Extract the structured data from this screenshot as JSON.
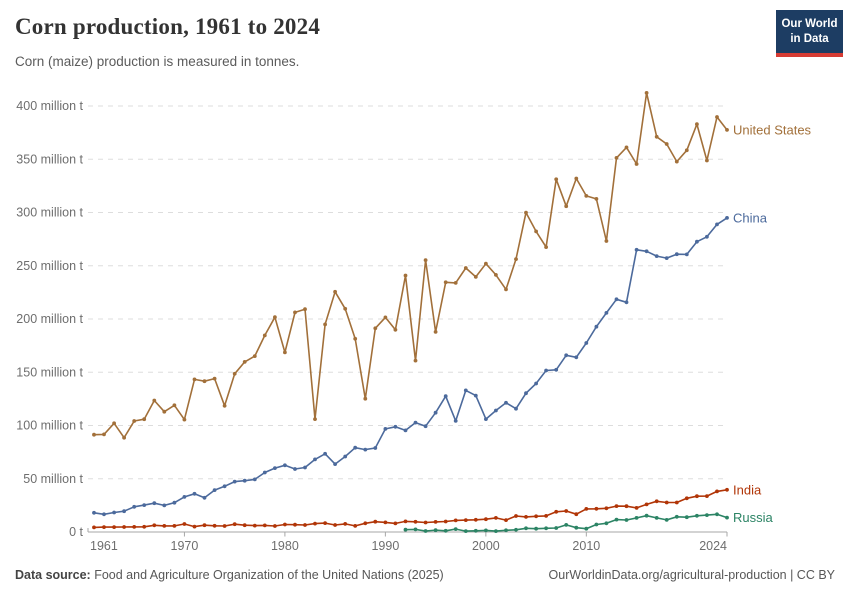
{
  "header": {
    "title": "Corn production, 1961 to 2024",
    "subtitle": "Corn (maize) production is measured in tonnes.",
    "logo": {
      "line1": "Our World",
      "line2": "in Data",
      "bg_color": "#1d3d63",
      "accent_color": "#d73c34"
    }
  },
  "chart_data": {
    "type": "line",
    "title": "Corn production, 1961 to 2024",
    "subtitle": "Corn (maize) production is measured in tonnes.",
    "unit": "tonnes",
    "grid": "dashed-horizontal",
    "legend_position": "right-end-of-line",
    "ylim": [
      0,
      415
    ],
    "xlim": [
      1961,
      2024
    ],
    "yticks": [
      {
        "value": 0,
        "label": "0 t"
      },
      {
        "value": 50,
        "label": "50 million t"
      },
      {
        "value": 100,
        "label": "100 million t"
      },
      {
        "value": 150,
        "label": "150 million t"
      },
      {
        "value": 200,
        "label": "200 million t"
      },
      {
        "value": 250,
        "label": "250 million t"
      },
      {
        "value": 300,
        "label": "300 million t"
      },
      {
        "value": 350,
        "label": "350 million t"
      },
      {
        "value": 400,
        "label": "400 million t"
      }
    ],
    "xticks": [
      1961,
      1970,
      1980,
      1990,
      2000,
      2010,
      2024
    ],
    "years": [
      1961,
      1962,
      1963,
      1964,
      1965,
      1966,
      1967,
      1968,
      1969,
      1970,
      1971,
      1972,
      1973,
      1974,
      1975,
      1976,
      1977,
      1978,
      1979,
      1980,
      1981,
      1982,
      1983,
      1984,
      1985,
      1986,
      1987,
      1988,
      1989,
      1990,
      1991,
      1992,
      1993,
      1994,
      1995,
      1996,
      1997,
      1998,
      1999,
      2000,
      2001,
      2002,
      2003,
      2004,
      2005,
      2006,
      2007,
      2008,
      2009,
      2010,
      2011,
      2012,
      2013,
      2014,
      2015,
      2016,
      2017,
      2018,
      2019,
      2020,
      2021,
      2022,
      2023,
      2024
    ],
    "series": [
      {
        "name": "United States",
        "color": "#A2703A",
        "values": [
          91.4,
          91.6,
          102.1,
          88.5,
          104.2,
          105.9,
          123.5,
          113.0,
          119.0,
          105.5,
          143.3,
          141.6,
          144.0,
          118.5,
          148.5,
          159.7,
          165.2,
          184.6,
          201.7,
          168.6,
          206.2,
          209.2,
          106.0,
          194.9,
          225.5,
          209.6,
          181.4,
          125.2,
          191.3,
          201.5,
          189.9,
          240.8,
          160.9,
          255.3,
          187.9,
          234.5,
          233.9,
          247.9,
          239.5,
          251.9,
          241.4,
          227.8,
          256.2,
          299.9,
          282.3,
          267.5,
          331.2,
          305.9,
          331.9,
          315.6,
          312.8,
          273.2,
          351.3,
          361.1,
          345.5,
          412.3,
          371.1,
          364.3,
          347.8,
          358.4,
          382.9,
          348.8,
          389.7,
          377.6
        ]
      },
      {
        "name": "China",
        "color": "#4C6A9C",
        "values": [
          18.0,
          16.6,
          18.3,
          19.5,
          23.7,
          25.3,
          27.0,
          25.0,
          27.5,
          33.0,
          35.9,
          32.1,
          39.3,
          42.9,
          47.3,
          48.2,
          49.4,
          55.9,
          60.0,
          62.6,
          59.2,
          60.6,
          68.2,
          73.4,
          63.8,
          70.9,
          79.2,
          77.4,
          78.9,
          96.8,
          98.8,
          95.4,
          102.7,
          99.3,
          112.0,
          127.5,
          104.3,
          133.0,
          128.1,
          106.0,
          114.1,
          121.3,
          115.8,
          130.3,
          139.4,
          151.6,
          152.3,
          165.9,
          164.0,
          177.5,
          192.8,
          205.7,
          218.5,
          215.7,
          265.0,
          263.6,
          259.1,
          257.2,
          260.8,
          260.7,
          272.6,
          277.2,
          288.8,
          294.9
        ]
      },
      {
        "name": "India",
        "color": "#B13507",
        "values": [
          4.3,
          4.6,
          4.6,
          4.7,
          4.8,
          4.9,
          6.3,
          5.7,
          5.7,
          7.5,
          5.1,
          6.4,
          5.8,
          5.6,
          7.3,
          6.4,
          6.0,
          6.2,
          5.6,
          7.0,
          6.9,
          6.6,
          7.9,
          8.4,
          6.6,
          7.6,
          5.7,
          8.2,
          9.7,
          9.0,
          8.1,
          10.0,
          9.6,
          8.9,
          9.5,
          9.9,
          10.9,
          11.2,
          11.5,
          12.0,
          13.2,
          11.2,
          15.0,
          14.2,
          14.7,
          15.1,
          19.0,
          19.7,
          16.7,
          21.7,
          21.8,
          22.3,
          24.3,
          24.2,
          22.6,
          25.9,
          28.8,
          27.7,
          27.7,
          31.6,
          33.6,
          33.7,
          38.1,
          39.6
        ]
      },
      {
        "name": "Russia",
        "color": "#2C8465",
        "values": [
          null,
          null,
          null,
          null,
          null,
          null,
          null,
          null,
          null,
          null,
          null,
          null,
          null,
          null,
          null,
          null,
          null,
          null,
          null,
          null,
          null,
          null,
          null,
          null,
          null,
          null,
          null,
          null,
          null,
          null,
          null,
          2.2,
          2.4,
          0.9,
          1.7,
          1.1,
          2.7,
          0.8,
          1.1,
          1.5,
          0.8,
          1.6,
          2.1,
          3.5,
          3.1,
          3.5,
          3.8,
          6.7,
          4.0,
          3.1,
          7.0,
          8.2,
          11.6,
          11.3,
          13.2,
          15.3,
          13.2,
          11.4,
          14.3,
          13.9,
          15.2,
          15.9,
          16.6,
          13.5
        ]
      }
    ],
    "style": {
      "grid_color": "#dddddd",
      "axis_color": "#a7a7a7",
      "tick_label_color": "#6e6e6e"
    }
  },
  "footer": {
    "datasource_label": "Data source:",
    "datasource_text": " Food and Agriculture Organization of the United Nations (2025)",
    "right_text": "OurWorldinData.org/agricultural-production | CC BY"
  }
}
